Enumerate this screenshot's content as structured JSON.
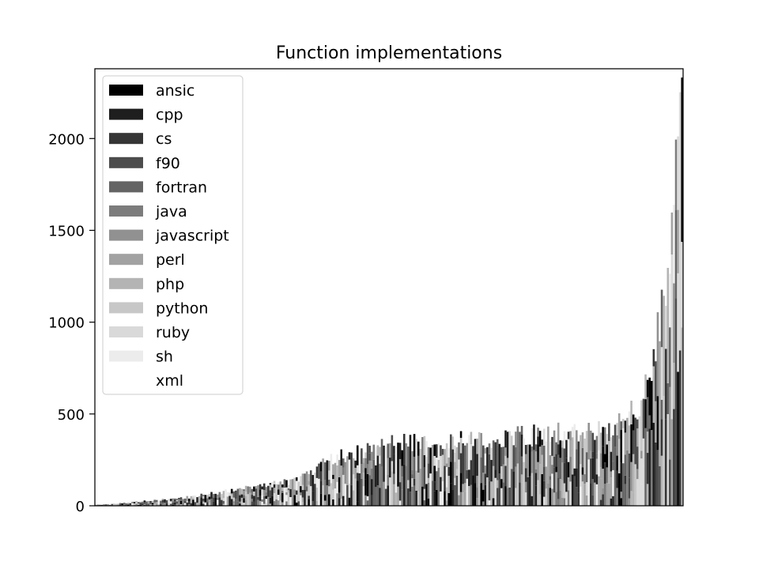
{
  "chart_data": {
    "type": "bar",
    "title": "Function implementations",
    "xlabel": "",
    "ylabel": "",
    "ylim": [
      0,
      2380
    ],
    "yticks": [
      0,
      500,
      1000,
      1500,
      2000
    ],
    "xticks": [],
    "grid": false,
    "legend_position": "top-left",
    "series": [
      {
        "name": "ansic",
        "color": "#000000"
      },
      {
        "name": "cpp",
        "color": "#1e1e1e"
      },
      {
        "name": "cs",
        "color": "#353535"
      },
      {
        "name": "f90",
        "color": "#4c4c4c"
      },
      {
        "name": "fortran",
        "color": "#646464"
      },
      {
        "name": "java",
        "color": "#7c7c7c"
      },
      {
        "name": "javascript",
        "color": "#919191"
      },
      {
        "name": "perl",
        "color": "#a2a2a2"
      },
      {
        "name": "php",
        "color": "#b4b4b4"
      },
      {
        "name": "python",
        "color": "#c7c7c7"
      },
      {
        "name": "ruby",
        "color": "#d9d9d9"
      },
      {
        "name": "sh",
        "color": "#ececec"
      },
      {
        "name": "xml",
        "color": "#ffffff"
      }
    ],
    "stacked": true,
    "bar_count": 290,
    "approximate_stack_totals": [
      [
        0,
        5
      ],
      [
        10,
        12
      ],
      [
        20,
        22
      ],
      [
        40,
        40
      ],
      [
        60,
        70
      ],
      [
        80,
        110
      ],
      [
        100,
        140
      ],
      [
        110,
        220
      ],
      [
        120,
        275
      ],
      [
        130,
        290
      ],
      [
        140,
        335
      ],
      [
        170,
        350
      ],
      [
        200,
        375
      ],
      [
        230,
        400
      ],
      [
        255,
        430
      ],
      [
        265,
        520
      ],
      [
        270,
        600
      ],
      [
        273,
        720
      ],
      [
        276,
        850
      ],
      [
        278,
        1000
      ],
      [
        281,
        1200
      ],
      [
        284,
        1500
      ],
      [
        286,
        1800
      ],
      [
        288,
        2000
      ],
      [
        289,
        2200
      ]
    ]
  }
}
